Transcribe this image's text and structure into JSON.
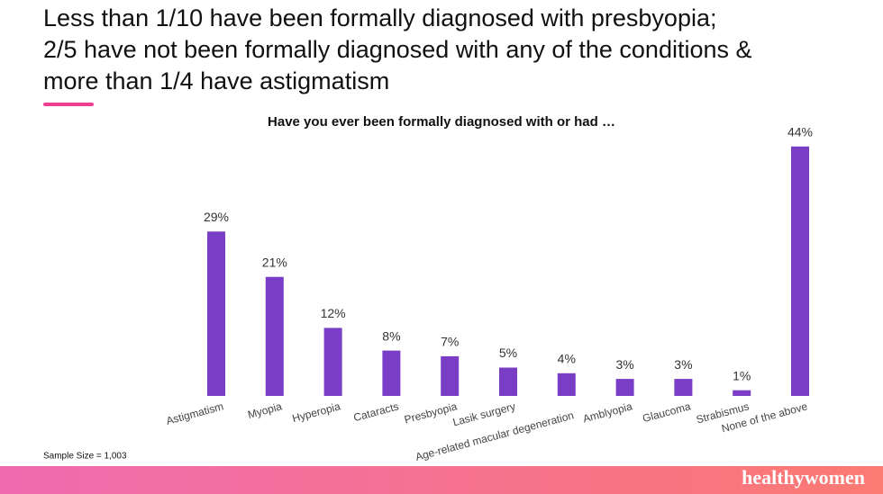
{
  "chart_data": {
    "type": "bar",
    "title": [
      "Less than 1/10 have been formally diagnosed with presbyopia;",
      "2/5 have not been formally diagnosed with any of the conditions &",
      "more than 1/4 have astigmatism"
    ],
    "subtitle": "Have you ever been formally diagnosed with or had …",
    "categories": [
      "Astigmatism",
      "Myopia",
      "Hyperopia",
      "Cataracts",
      "Presbyopia",
      "Lasik surgery",
      "Age-related macular degeneration",
      "Amblyopia",
      "Glaucoma",
      "Strabismus",
      "None of the above"
    ],
    "values": [
      29,
      21,
      12,
      8,
      7,
      5,
      4,
      3,
      3,
      1,
      44
    ],
    "value_labels": [
      "29%",
      "21%",
      "12%",
      "8%",
      "7%",
      "5%",
      "4%",
      "3%",
      "3%",
      "1%",
      "44%"
    ],
    "color": "#7a3ec6",
    "note": "Sample Size = 1,003"
  },
  "footer": {
    "brand": "healthywomen"
  }
}
